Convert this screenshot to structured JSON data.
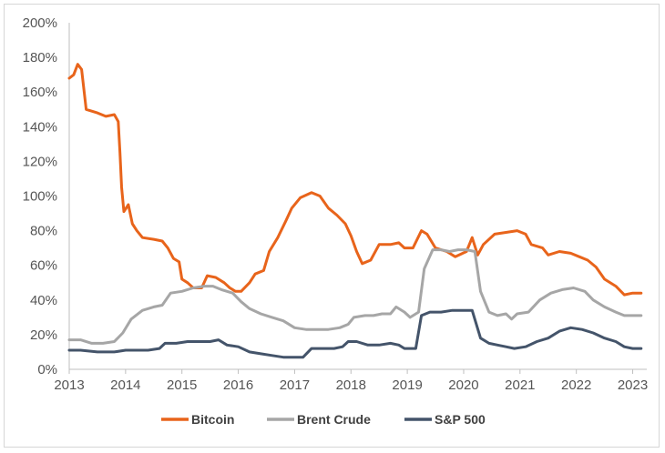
{
  "chart_data": {
    "type": "line",
    "title": "",
    "xlabel": "",
    "ylabel": "",
    "xlim": [
      2013,
      2023.25
    ],
    "ylim": [
      0,
      200
    ],
    "y_ticks": [
      0,
      20,
      40,
      60,
      80,
      100,
      120,
      140,
      160,
      180,
      200
    ],
    "y_tick_labels": [
      "0%",
      "20%",
      "40%",
      "60%",
      "80%",
      "100%",
      "120%",
      "140%",
      "160%",
      "180%",
      "200%"
    ],
    "x_ticks": [
      2013,
      2014,
      2015,
      2016,
      2017,
      2018,
      2019,
      2020,
      2021,
      2022,
      2023
    ],
    "x_tick_labels": [
      "2013",
      "2014",
      "2015",
      "2016",
      "2017",
      "2018",
      "2019",
      "2020",
      "2021",
      "2022",
      "2023"
    ],
    "grid": false,
    "legend_position": "bottom-center",
    "series": [
      {
        "name": "Bitcoin",
        "color": "#E8641B",
        "points": [
          [
            2013.0,
            168
          ],
          [
            2013.08,
            170
          ],
          [
            2013.15,
            176
          ],
          [
            2013.22,
            173
          ],
          [
            2013.3,
            150
          ],
          [
            2013.5,
            148
          ],
          [
            2013.65,
            146
          ],
          [
            2013.8,
            147
          ],
          [
            2013.87,
            143
          ],
          [
            2013.9,
            125
          ],
          [
            2013.93,
            105
          ],
          [
            2013.97,
            91
          ],
          [
            2014.05,
            95
          ],
          [
            2014.12,
            84
          ],
          [
            2014.2,
            80
          ],
          [
            2014.3,
            76
          ],
          [
            2014.5,
            75
          ],
          [
            2014.65,
            74
          ],
          [
            2014.75,
            70
          ],
          [
            2014.85,
            64
          ],
          [
            2014.95,
            62
          ],
          [
            2015.0,
            52
          ],
          [
            2015.1,
            50
          ],
          [
            2015.2,
            47
          ],
          [
            2015.35,
            47
          ],
          [
            2015.45,
            54
          ],
          [
            2015.6,
            53
          ],
          [
            2015.75,
            50
          ],
          [
            2015.85,
            47
          ],
          [
            2015.95,
            45
          ],
          [
            2016.05,
            45
          ],
          [
            2016.2,
            50
          ],
          [
            2016.3,
            55
          ],
          [
            2016.45,
            57
          ],
          [
            2016.55,
            68
          ],
          [
            2016.7,
            76
          ],
          [
            2016.85,
            86
          ],
          [
            2016.95,
            93
          ],
          [
            2017.1,
            99
          ],
          [
            2017.3,
            102
          ],
          [
            2017.45,
            100
          ],
          [
            2017.6,
            93
          ],
          [
            2017.75,
            89
          ],
          [
            2017.9,
            84
          ],
          [
            2018.0,
            77
          ],
          [
            2018.1,
            68
          ],
          [
            2018.2,
            61
          ],
          [
            2018.35,
            63
          ],
          [
            2018.5,
            72
          ],
          [
            2018.7,
            72
          ],
          [
            2018.85,
            73
          ],
          [
            2018.95,
            70
          ],
          [
            2019.1,
            70
          ],
          [
            2019.25,
            80
          ],
          [
            2019.35,
            78
          ],
          [
            2019.5,
            70
          ],
          [
            2019.7,
            68
          ],
          [
            2019.85,
            65
          ],
          [
            2020.05,
            68
          ],
          [
            2020.15,
            76
          ],
          [
            2020.25,
            66
          ],
          [
            2020.35,
            72
          ],
          [
            2020.55,
            78
          ],
          [
            2020.75,
            79
          ],
          [
            2020.95,
            80
          ],
          [
            2021.1,
            78
          ],
          [
            2021.2,
            72
          ],
          [
            2021.4,
            70
          ],
          [
            2021.5,
            66
          ],
          [
            2021.7,
            68
          ],
          [
            2021.9,
            67
          ],
          [
            2022.05,
            65
          ],
          [
            2022.2,
            63
          ],
          [
            2022.35,
            59
          ],
          [
            2022.5,
            52
          ],
          [
            2022.7,
            48
          ],
          [
            2022.85,
            43
          ],
          [
            2023.0,
            44
          ],
          [
            2023.15,
            44
          ]
        ]
      },
      {
        "name": "Brent Crude",
        "color": "#A6A6A6",
        "points": [
          [
            2013.0,
            17
          ],
          [
            2013.2,
            17
          ],
          [
            2013.4,
            15
          ],
          [
            2013.6,
            15
          ],
          [
            2013.8,
            16
          ],
          [
            2013.95,
            21
          ],
          [
            2014.1,
            29
          ],
          [
            2014.3,
            34
          ],
          [
            2014.5,
            36
          ],
          [
            2014.65,
            37
          ],
          [
            2014.8,
            44
          ],
          [
            2015.0,
            45
          ],
          [
            2015.2,
            47
          ],
          [
            2015.4,
            48
          ],
          [
            2015.55,
            48
          ],
          [
            2015.7,
            46
          ],
          [
            2015.9,
            44
          ],
          [
            2016.05,
            39
          ],
          [
            2016.2,
            35
          ],
          [
            2016.4,
            32
          ],
          [
            2016.6,
            30
          ],
          [
            2016.8,
            28
          ],
          [
            2017.0,
            24
          ],
          [
            2017.2,
            23
          ],
          [
            2017.4,
            23
          ],
          [
            2017.6,
            23
          ],
          [
            2017.8,
            24
          ],
          [
            2017.95,
            26
          ],
          [
            2018.05,
            30
          ],
          [
            2018.25,
            31
          ],
          [
            2018.4,
            31
          ],
          [
            2018.55,
            32
          ],
          [
            2018.7,
            32
          ],
          [
            2018.8,
            36
          ],
          [
            2018.95,
            33
          ],
          [
            2019.05,
            30
          ],
          [
            2019.2,
            33
          ],
          [
            2019.3,
            58
          ],
          [
            2019.45,
            69
          ],
          [
            2019.6,
            69
          ],
          [
            2019.75,
            68
          ],
          [
            2019.9,
            69
          ],
          [
            2020.05,
            69
          ],
          [
            2020.2,
            68
          ],
          [
            2020.3,
            45
          ],
          [
            2020.45,
            33
          ],
          [
            2020.6,
            31
          ],
          [
            2020.75,
            32
          ],
          [
            2020.85,
            29
          ],
          [
            2020.95,
            32
          ],
          [
            2021.15,
            33
          ],
          [
            2021.35,
            40
          ],
          [
            2021.55,
            44
          ],
          [
            2021.75,
            46
          ],
          [
            2021.95,
            47
          ],
          [
            2022.15,
            45
          ],
          [
            2022.3,
            40
          ],
          [
            2022.5,
            36
          ],
          [
            2022.7,
            33
          ],
          [
            2022.85,
            31
          ],
          [
            2023.0,
            31
          ],
          [
            2023.15,
            31
          ]
        ]
      },
      {
        "name": "S&P 500",
        "color": "#44546A",
        "points": [
          [
            2013.0,
            11
          ],
          [
            2013.2,
            11
          ],
          [
            2013.5,
            10
          ],
          [
            2013.8,
            10
          ],
          [
            2014.0,
            11
          ],
          [
            2014.2,
            11
          ],
          [
            2014.4,
            11
          ],
          [
            2014.6,
            12
          ],
          [
            2014.7,
            15
          ],
          [
            2014.9,
            15
          ],
          [
            2015.1,
            16
          ],
          [
            2015.3,
            16
          ],
          [
            2015.5,
            16
          ],
          [
            2015.65,
            17
          ],
          [
            2015.8,
            14
          ],
          [
            2016.0,
            13
          ],
          [
            2016.2,
            10
          ],
          [
            2016.4,
            9
          ],
          [
            2016.6,
            8
          ],
          [
            2016.8,
            7
          ],
          [
            2017.0,
            7
          ],
          [
            2017.15,
            7
          ],
          [
            2017.3,
            12
          ],
          [
            2017.5,
            12
          ],
          [
            2017.7,
            12
          ],
          [
            2017.85,
            13
          ],
          [
            2017.95,
            16
          ],
          [
            2018.1,
            16
          ],
          [
            2018.3,
            14
          ],
          [
            2018.5,
            14
          ],
          [
            2018.7,
            15
          ],
          [
            2018.85,
            14
          ],
          [
            2018.95,
            12
          ],
          [
            2019.05,
            12
          ],
          [
            2019.15,
            12
          ],
          [
            2019.25,
            31
          ],
          [
            2019.4,
            33
          ],
          [
            2019.6,
            33
          ],
          [
            2019.8,
            34
          ],
          [
            2020.0,
            34
          ],
          [
            2020.15,
            34
          ],
          [
            2020.3,
            18
          ],
          [
            2020.45,
            15
          ],
          [
            2020.6,
            14
          ],
          [
            2020.75,
            13
          ],
          [
            2020.9,
            12
          ],
          [
            2021.1,
            13
          ],
          [
            2021.3,
            16
          ],
          [
            2021.5,
            18
          ],
          [
            2021.7,
            22
          ],
          [
            2021.9,
            24
          ],
          [
            2022.1,
            23
          ],
          [
            2022.3,
            21
          ],
          [
            2022.5,
            18
          ],
          [
            2022.7,
            16
          ],
          [
            2022.85,
            13
          ],
          [
            2023.0,
            12
          ],
          [
            2023.15,
            12
          ]
        ]
      }
    ]
  }
}
